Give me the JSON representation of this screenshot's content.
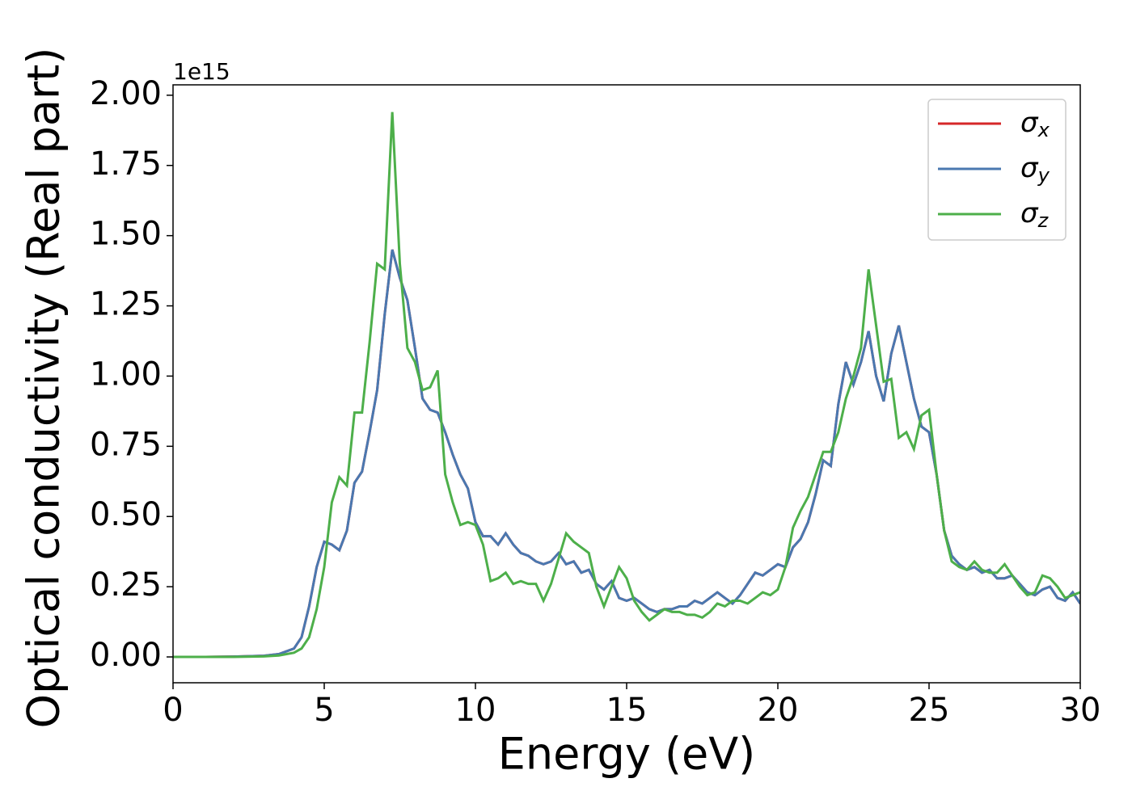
{
  "chart_data": {
    "type": "line",
    "x_label": "Energy (eV)",
    "y_label": "Optical conductivity (Real part)",
    "y_offset_text": "1e15",
    "xlim": [
      0,
      30
    ],
    "ylim": [
      -0.092,
      2.037
    ],
    "xticks": [
      0,
      5,
      10,
      15,
      20,
      25,
      30
    ],
    "yticks": [
      {
        "value": 0,
        "label": "0.00"
      },
      0.25,
      {
        "value": 0.5,
        "label": "0.50"
      },
      0.75,
      {
        "value": 1,
        "label": "1.00"
      },
      1.25,
      {
        "value": 1.5,
        "label": "1.50"
      },
      1.75,
      {
        "value": 2,
        "label": "2.00"
      }
    ],
    "legend": "upper right",
    "x": [
      0,
      1,
      2,
      3,
      3.5,
      4,
      4.25,
      4.5,
      4.75,
      5,
      5.25,
      5.5,
      5.75,
      6,
      6.25,
      6.5,
      6.75,
      7,
      7.25,
      7.5,
      7.75,
      8,
      8.25,
      8.5,
      8.75,
      9,
      9.25,
      9.5,
      9.75,
      10,
      10.25,
      10.5,
      10.75,
      11,
      11.25,
      11.5,
      11.75,
      12,
      12.25,
      12.5,
      12.75,
      13,
      13.25,
      13.5,
      13.75,
      14,
      14.25,
      14.5,
      14.75,
      15,
      15.25,
      15.5,
      15.75,
      16,
      16.25,
      16.5,
      16.75,
      17,
      17.25,
      17.5,
      17.75,
      18,
      18.25,
      18.5,
      18.75,
      19,
      19.25,
      19.5,
      19.75,
      20,
      20.25,
      20.5,
      20.75,
      21,
      21.25,
      21.5,
      21.75,
      22,
      22.25,
      22.5,
      22.75,
      23,
      23.25,
      23.5,
      23.75,
      24,
      24.25,
      24.5,
      24.75,
      25,
      25.25,
      25.5,
      25.75,
      26,
      26.25,
      26.5,
      26.75,
      27,
      27.25,
      27.5,
      27.75,
      28,
      28.25,
      28.5,
      28.75,
      29,
      29.25,
      29.5,
      29.75,
      30
    ],
    "series": [
      {
        "name": "σx",
        "color": "#d62728",
        "values": [
          0,
          0,
          0.001,
          0.004,
          0.01,
          0.03,
          0.07,
          0.18,
          0.32,
          0.41,
          0.4,
          0.38,
          0.45,
          0.62,
          0.66,
          0.8,
          0.95,
          1.22,
          1.45,
          1.35,
          1.27,
          1.1,
          0.92,
          0.88,
          0.87,
          0.8,
          0.72,
          0.65,
          0.6,
          0.48,
          0.43,
          0.43,
          0.4,
          0.44,
          0.4,
          0.37,
          0.36,
          0.34,
          0.33,
          0.34,
          0.37,
          0.33,
          0.34,
          0.3,
          0.31,
          0.26,
          0.24,
          0.27,
          0.21,
          0.2,
          0.21,
          0.19,
          0.17,
          0.16,
          0.17,
          0.17,
          0.18,
          0.18,
          0.2,
          0.19,
          0.21,
          0.23,
          0.21,
          0.19,
          0.22,
          0.26,
          0.3,
          0.29,
          0.31,
          0.33,
          0.32,
          0.39,
          0.42,
          0.48,
          0.58,
          0.7,
          0.68,
          0.9,
          1.05,
          0.97,
          1.05,
          1.16,
          1.0,
          0.91,
          1.08,
          1.18,
          1.05,
          0.92,
          0.82,
          0.8,
          0.65,
          0.45,
          0.36,
          0.33,
          0.31,
          0.32,
          0.3,
          0.31,
          0.28,
          0.28,
          0.29,
          0.26,
          0.23,
          0.22,
          0.24,
          0.25,
          0.21,
          0.2,
          0.23,
          0.19
        ]
      },
      {
        "name": "σy",
        "color": "#4a78b0",
        "values": [
          0,
          0,
          0.001,
          0.004,
          0.01,
          0.03,
          0.07,
          0.18,
          0.32,
          0.41,
          0.4,
          0.38,
          0.45,
          0.62,
          0.66,
          0.8,
          0.95,
          1.22,
          1.45,
          1.35,
          1.27,
          1.1,
          0.92,
          0.88,
          0.87,
          0.8,
          0.72,
          0.65,
          0.6,
          0.48,
          0.43,
          0.43,
          0.4,
          0.44,
          0.4,
          0.37,
          0.36,
          0.34,
          0.33,
          0.34,
          0.37,
          0.33,
          0.34,
          0.3,
          0.31,
          0.26,
          0.24,
          0.27,
          0.21,
          0.2,
          0.21,
          0.19,
          0.17,
          0.16,
          0.17,
          0.17,
          0.18,
          0.18,
          0.2,
          0.19,
          0.21,
          0.23,
          0.21,
          0.19,
          0.22,
          0.26,
          0.3,
          0.29,
          0.31,
          0.33,
          0.32,
          0.39,
          0.42,
          0.48,
          0.58,
          0.7,
          0.68,
          0.9,
          1.05,
          0.97,
          1.05,
          1.16,
          1.0,
          0.91,
          1.08,
          1.18,
          1.05,
          0.92,
          0.82,
          0.8,
          0.65,
          0.45,
          0.36,
          0.33,
          0.31,
          0.32,
          0.3,
          0.31,
          0.28,
          0.28,
          0.29,
          0.26,
          0.23,
          0.22,
          0.24,
          0.25,
          0.21,
          0.2,
          0.23,
          0.19
        ]
      },
      {
        "name": "σz",
        "color": "#4daf4a",
        "values": [
          0,
          0,
          0,
          0.002,
          0.005,
          0.015,
          0.03,
          0.07,
          0.17,
          0.32,
          0.55,
          0.64,
          0.61,
          0.87,
          0.87,
          1.12,
          1.4,
          1.38,
          1.94,
          1.4,
          1.1,
          1.05,
          0.95,
          0.96,
          1.02,
          0.65,
          0.55,
          0.47,
          0.48,
          0.47,
          0.4,
          0.27,
          0.28,
          0.3,
          0.26,
          0.27,
          0.26,
          0.26,
          0.2,
          0.26,
          0.35,
          0.44,
          0.41,
          0.39,
          0.37,
          0.25,
          0.18,
          0.25,
          0.32,
          0.28,
          0.2,
          0.16,
          0.13,
          0.15,
          0.17,
          0.16,
          0.16,
          0.15,
          0.15,
          0.14,
          0.16,
          0.19,
          0.18,
          0.2,
          0.2,
          0.19,
          0.21,
          0.23,
          0.22,
          0.24,
          0.32,
          0.46,
          0.52,
          0.57,
          0.65,
          0.73,
          0.73,
          0.8,
          0.92,
          1.0,
          1.1,
          1.38,
          1.18,
          0.98,
          0.99,
          0.78,
          0.8,
          0.74,
          0.86,
          0.88,
          0.65,
          0.45,
          0.34,
          0.32,
          0.31,
          0.34,
          0.31,
          0.3,
          0.3,
          0.33,
          0.29,
          0.25,
          0.22,
          0.23,
          0.29,
          0.28,
          0.25,
          0.21,
          0.22,
          0.23
        ]
      }
    ]
  }
}
